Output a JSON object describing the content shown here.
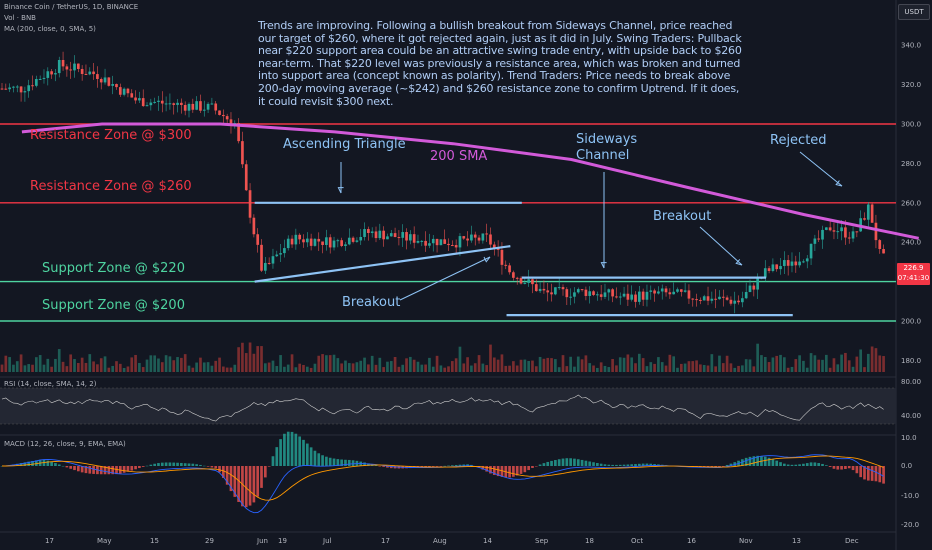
{
  "legend": {
    "symbol": "Binance Coin / TetherUS, 1D, BINANCE",
    "volume": "Vol · BNB",
    "ma": "MA (200, close, 0, SMA, 5)",
    "rsi": "RSI (14, close, SMA, 14, 2)",
    "macd": "MACD (12, 26, close, 9, EMA, EMA)"
  },
  "currency": "USDT",
  "analysis_text": "Trends are improving. Following a bullish breakout from Sideways Channel, price reached our target of $260, where it got rejected again, just as it did in July. Swing Traders: Pullback near $220 support area could be an attractive swing trade entry, with upside back to $260 near-term. That $220 level was previously a resistance area, which was broken and turned into support area (concept known as polarity). Trend Traders: Price needs to break above 200-day moving average (~$242) and $260 resistance zone to confirm Uptrend. If it does, it could revisit $300 next.",
  "annotations": {
    "resistance_300": "Resistance Zone @ $300",
    "resistance_260": "Resistance Zone @ $260",
    "support_220": "Support Zone @ $220",
    "support_200": "Support Zone @ $200",
    "ascending_triangle": "Ascending Triangle",
    "sma200": "200 SMA",
    "sideways_1": "Sideways",
    "sideways_2": "Channel",
    "rejected": "Rejected",
    "breakout_upper": "Breakout",
    "breakout_lower": "Breakout"
  },
  "current_price": {
    "value": "226.9",
    "countdown": "07:41:30"
  },
  "chart_data": {
    "type": "line",
    "title": "Binance Coin / TetherUS, 1D, BINANCE",
    "x_axis_labels": [
      "17",
      "May",
      "15",
      "29",
      "Jun",
      "19",
      "Jul",
      "17",
      "Aug",
      "14",
      "Sep",
      "18",
      "Oct",
      "16",
      "Nov",
      "13",
      "Dec"
    ],
    "price_axis": {
      "ticks": [
        340.0,
        320.0,
        300.0,
        280.0,
        260.0,
        240.0,
        220.0,
        200.0,
        180.0
      ],
      "range": [
        170,
        352
      ]
    },
    "rsi_axis": {
      "ticks": [
        80.0,
        40.0
      ]
    },
    "macd_axis": {
      "ticks": [
        10.0,
        0.0,
        -10.0,
        -20.0
      ]
    },
    "horizontal_levels": [
      {
        "name": "Resistance Zone @ $300",
        "value": 300,
        "color": "#f23645"
      },
      {
        "name": "Resistance Zone @ $260",
        "value": 260,
        "color": "#f23645"
      },
      {
        "name": "Support Zone @ $220",
        "value": 220,
        "color": "#4ed4a0"
      },
      {
        "name": "Support Zone @ $200",
        "value": 200,
        "color": "#4ed4a0"
      }
    ],
    "price_approx": [
      {
        "date": "Apr 10",
        "close": 318
      },
      {
        "date": "Apr 20",
        "close": 330
      },
      {
        "date": "Apr 30",
        "close": 325
      },
      {
        "date": "May 10",
        "close": 312
      },
      {
        "date": "May 20",
        "close": 310
      },
      {
        "date": "May 30",
        "close": 308
      },
      {
        "date": "Jun 5",
        "close": 300
      },
      {
        "date": "Jun 8",
        "close": 262
      },
      {
        "date": "Jun 12",
        "close": 225
      },
      {
        "date": "Jun 20",
        "close": 242
      },
      {
        "date": "Jul 1",
        "close": 240
      },
      {
        "date": "Jul 10",
        "close": 245
      },
      {
        "date": "Jul 20",
        "close": 242
      },
      {
        "date": "Aug 1",
        "close": 240
      },
      {
        "date": "Aug 10",
        "close": 242
      },
      {
        "date": "Aug 16",
        "close": 225
      },
      {
        "date": "Aug 25",
        "close": 214
      },
      {
        "date": "Sep 5",
        "close": 215
      },
      {
        "date": "Sep 15",
        "close": 212
      },
      {
        "date": "Sep 25",
        "close": 214
      },
      {
        "date": "Oct 5",
        "close": 212
      },
      {
        "date": "Oct 15",
        "close": 210
      },
      {
        "date": "Oct 22",
        "close": 225
      },
      {
        "date": "Nov 1",
        "close": 233
      },
      {
        "date": "Nov 8",
        "close": 248
      },
      {
        "date": "Nov 14",
        "close": 243
      },
      {
        "date": "Nov 18",
        "close": 258
      },
      {
        "date": "Nov 21",
        "close": 232
      },
      {
        "date": "Nov 28",
        "close": 226.9
      }
    ],
    "sma200_approx": [
      {
        "date": "Apr 10",
        "value": 296
      },
      {
        "date": "May 1",
        "value": 300
      },
      {
        "date": "Jun 1",
        "value": 300
      },
      {
        "date": "Jul 1",
        "value": 296
      },
      {
        "date": "Aug 1",
        "value": 290
      },
      {
        "date": "Sep 1",
        "value": 282
      },
      {
        "date": "Oct 1",
        "value": 268
      },
      {
        "date": "Nov 1",
        "value": 254
      },
      {
        "date": "Dec 1",
        "value": 242
      }
    ]
  }
}
